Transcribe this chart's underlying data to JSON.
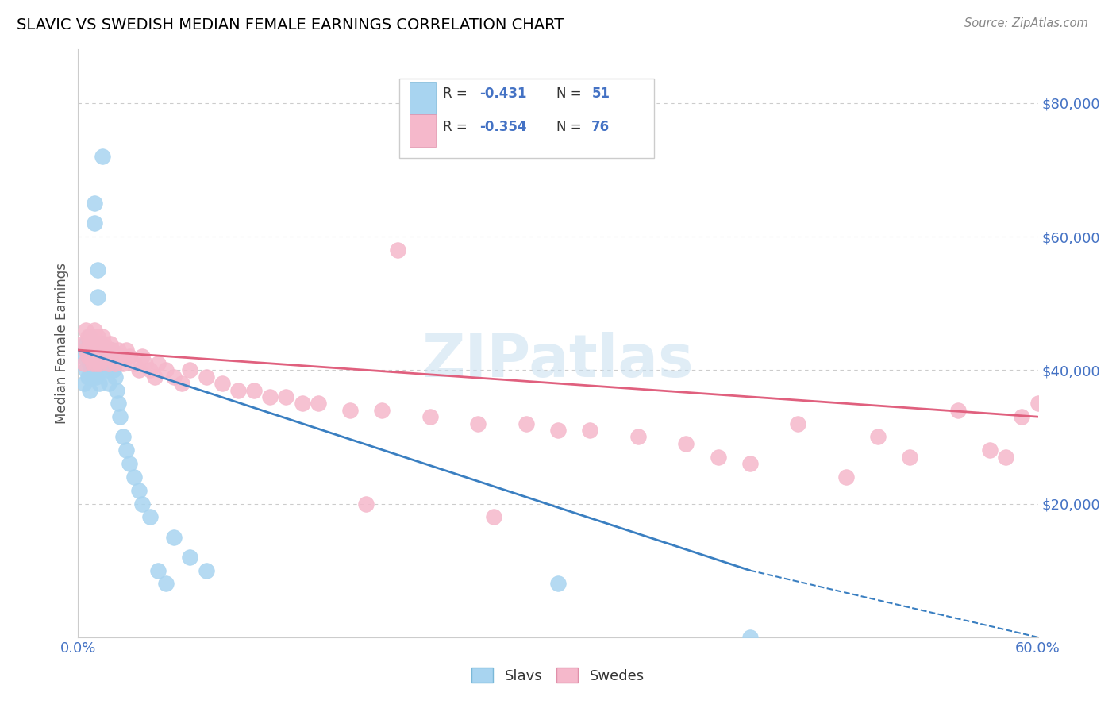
{
  "title": "SLAVIC VS SWEDISH MEDIAN FEMALE EARNINGS CORRELATION CHART",
  "source": "Source: ZipAtlas.com",
  "ylabel": "Median Female Earnings",
  "xlim": [
    0.0,
    0.6
  ],
  "ylim": [
    0,
    88000
  ],
  "yticks": [
    20000,
    40000,
    60000,
    80000
  ],
  "ytick_labels": [
    "$20,000",
    "$40,000",
    "$60,000",
    "$80,000"
  ],
  "xticks": [
    0.0,
    0.1,
    0.2,
    0.3,
    0.4,
    0.5,
    0.6
  ],
  "xtick_labels": [
    "0.0%",
    "",
    "",
    "",
    "",
    "",
    "60.0%"
  ],
  "color_slavs_scatter": "#a8d4f0",
  "color_swedes_scatter": "#f5b8cb",
  "color_slavs_line": "#3a7fc1",
  "color_swedes_line": "#e0607e",
  "background": "#ffffff",
  "grid_color": "#cccccc",
  "title_color": "#000000",
  "tick_color": "#4472c4",
  "watermark": "ZIPatlas",
  "legend_r_slavs": "-0.431",
  "legend_n_slavs": "51",
  "legend_r_swedes": "-0.354",
  "legend_n_swedes": "76",
  "slavs_x": [
    0.003,
    0.004,
    0.005,
    0.005,
    0.006,
    0.006,
    0.007,
    0.007,
    0.007,
    0.008,
    0.008,
    0.009,
    0.009,
    0.01,
    0.01,
    0.01,
    0.011,
    0.011,
    0.012,
    0.012,
    0.013,
    0.013,
    0.014,
    0.014,
    0.015,
    0.015,
    0.016,
    0.017,
    0.018,
    0.019,
    0.02,
    0.021,
    0.022,
    0.023,
    0.024,
    0.025,
    0.026,
    0.028,
    0.03,
    0.032,
    0.035,
    0.038,
    0.04,
    0.045,
    0.05,
    0.055,
    0.06,
    0.07,
    0.08,
    0.3,
    0.42
  ],
  "slavs_y": [
    42000,
    38000,
    44000,
    40000,
    43000,
    39000,
    45000,
    41000,
    37000,
    44000,
    40000,
    43000,
    39000,
    65000,
    62000,
    44000,
    43000,
    39000,
    55000,
    51000,
    42000,
    38000,
    44000,
    40000,
    72000,
    42000,
    41000,
    42000,
    40000,
    38000,
    42000,
    43000,
    40000,
    39000,
    37000,
    35000,
    33000,
    30000,
    28000,
    26000,
    24000,
    22000,
    20000,
    18000,
    10000,
    8000,
    15000,
    12000,
    10000,
    8000,
    0
  ],
  "swedes_x": [
    0.003,
    0.004,
    0.005,
    0.005,
    0.006,
    0.006,
    0.007,
    0.008,
    0.008,
    0.009,
    0.009,
    0.01,
    0.01,
    0.011,
    0.011,
    0.012,
    0.013,
    0.013,
    0.014,
    0.015,
    0.015,
    0.016,
    0.017,
    0.018,
    0.019,
    0.02,
    0.021,
    0.022,
    0.023,
    0.025,
    0.027,
    0.028,
    0.03,
    0.032,
    0.035,
    0.038,
    0.04,
    0.042,
    0.045,
    0.048,
    0.05,
    0.055,
    0.06,
    0.065,
    0.07,
    0.08,
    0.09,
    0.1,
    0.11,
    0.12,
    0.13,
    0.14,
    0.15,
    0.17,
    0.19,
    0.2,
    0.22,
    0.25,
    0.28,
    0.3,
    0.32,
    0.35,
    0.38,
    0.4,
    0.42,
    0.45,
    0.48,
    0.5,
    0.52,
    0.55,
    0.57,
    0.58,
    0.59,
    0.6,
    0.18,
    0.26
  ],
  "swedes_y": [
    44000,
    41000,
    46000,
    43000,
    45000,
    42000,
    44000,
    45000,
    42000,
    44000,
    41000,
    46000,
    43000,
    44000,
    41000,
    45000,
    44000,
    41000,
    43000,
    45000,
    42000,
    44000,
    43000,
    42000,
    41000,
    44000,
    43000,
    42000,
    41000,
    43000,
    42000,
    41000,
    43000,
    42000,
    41000,
    40000,
    42000,
    41000,
    40000,
    39000,
    41000,
    40000,
    39000,
    38000,
    40000,
    39000,
    38000,
    37000,
    37000,
    36000,
    36000,
    35000,
    35000,
    34000,
    34000,
    58000,
    33000,
    32000,
    32000,
    31000,
    31000,
    30000,
    29000,
    27000,
    26000,
    32000,
    24000,
    30000,
    27000,
    34000,
    28000,
    27000,
    33000,
    35000,
    20000,
    18000
  ]
}
